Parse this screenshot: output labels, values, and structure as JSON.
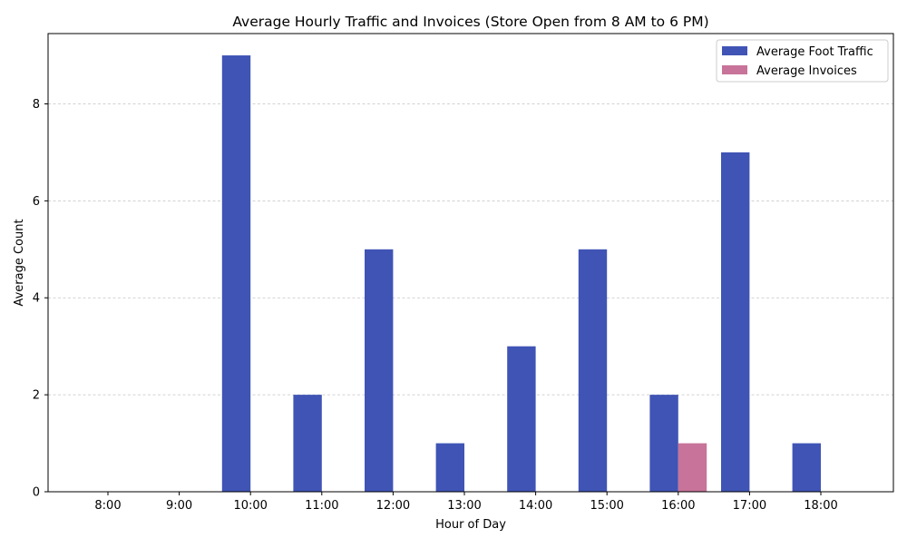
{
  "chart_data": {
    "type": "bar",
    "title": "Average Hourly Traffic and Invoices (Store Open from 8 AM to 6 PM)",
    "xlabel": "Hour of Day",
    "ylabel": "Average Count",
    "categories": [
      "8:00",
      "9:00",
      "10:00",
      "11:00",
      "12:00",
      "13:00",
      "14:00",
      "15:00",
      "16:00",
      "17:00",
      "18:00"
    ],
    "series": [
      {
        "name": "Average Foot Traffic",
        "color": "#4054b5",
        "values": [
          0,
          0,
          9,
          2,
          5,
          1,
          3,
          5,
          2,
          7,
          1
        ]
      },
      {
        "name": "Average Invoices",
        "color": "#c87399",
        "values": [
          0,
          0,
          0,
          0,
          0,
          0,
          0,
          0,
          1,
          0,
          0
        ]
      }
    ],
    "ylim": [
      0,
      9.45
    ],
    "yticks": [
      0,
      2,
      4,
      6,
      8
    ],
    "grid": "y-dashed",
    "legend_position": "top-right"
  }
}
